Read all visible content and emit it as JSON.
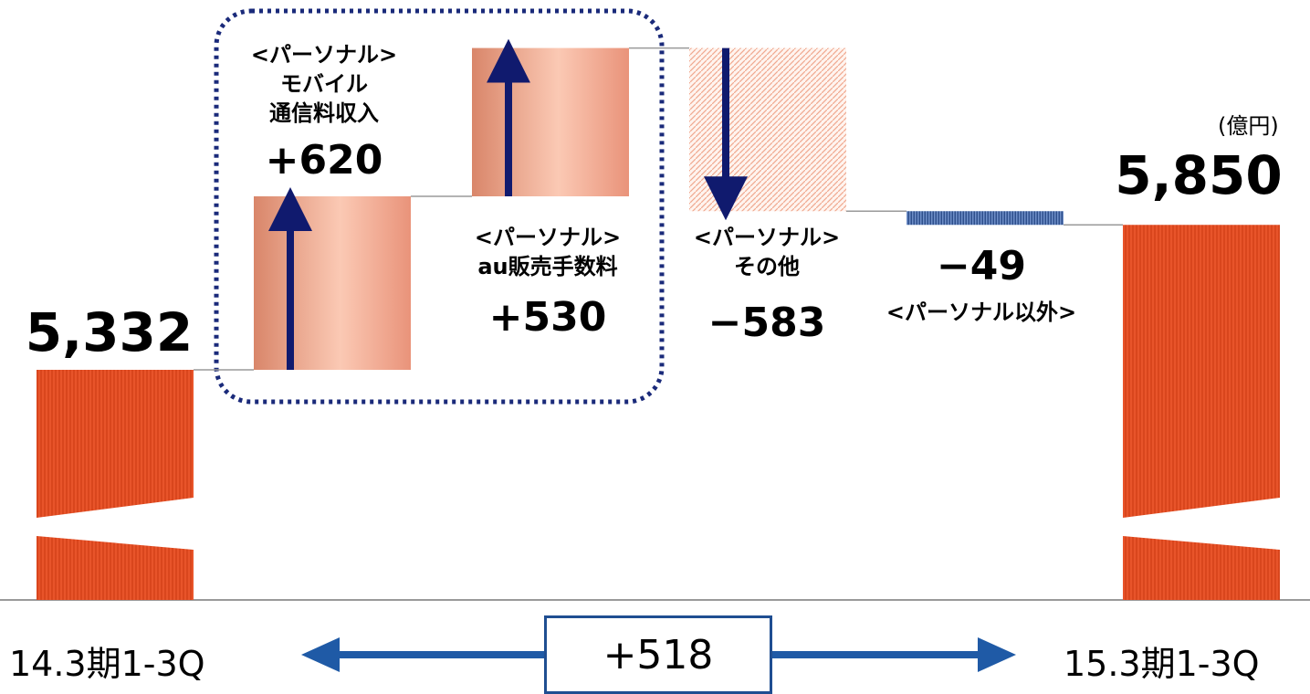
{
  "unit_label": "(億円)",
  "start": {
    "period": "14.3期1-3Q",
    "value_label": "5,332"
  },
  "end": {
    "period": "15.3期1-3Q",
    "value_label": "5,850"
  },
  "difference_label": "+518",
  "steps": [
    {
      "lines": [
        "<パーソナル>",
        "モバイル",
        "通信料収入"
      ],
      "value_label": "+620"
    },
    {
      "lines": [
        "<パーソナル>",
        "au販売手数料"
      ],
      "value_label": "+530"
    },
    {
      "lines": [
        "<パーソナル>",
        "その他"
      ],
      "value_label": "−583"
    },
    {
      "lines": [
        "<パーソナル以外>"
      ],
      "value_label": "−49"
    }
  ],
  "colors": {
    "total_bar": "#e8542a",
    "increase_bar": "#f3a58c",
    "decrease_bar": "#fbd9cc",
    "small_decrease_bar": "#2e4f8c",
    "arrow": "#101a6e",
    "period_arrow": "#1f5aa6",
    "group_border": "#1a2a7a",
    "baseline": "#9a9a9a"
  },
  "chart_data": {
    "type": "waterfall",
    "unit": "億円",
    "categories": [
      "14.3期1-3Q",
      "<パーソナル> モバイル 通信料収入",
      "<パーソナル> au販売手数料",
      "<パーソナル> その他",
      "<パーソナル以外>",
      "15.3期1-3Q"
    ],
    "values": [
      5332,
      620,
      530,
      -583,
      -49,
      5850
    ],
    "measure": [
      "total",
      "relative",
      "relative",
      "relative",
      "relative",
      "total"
    ],
    "net_change": 518,
    "axis_break": true
  }
}
